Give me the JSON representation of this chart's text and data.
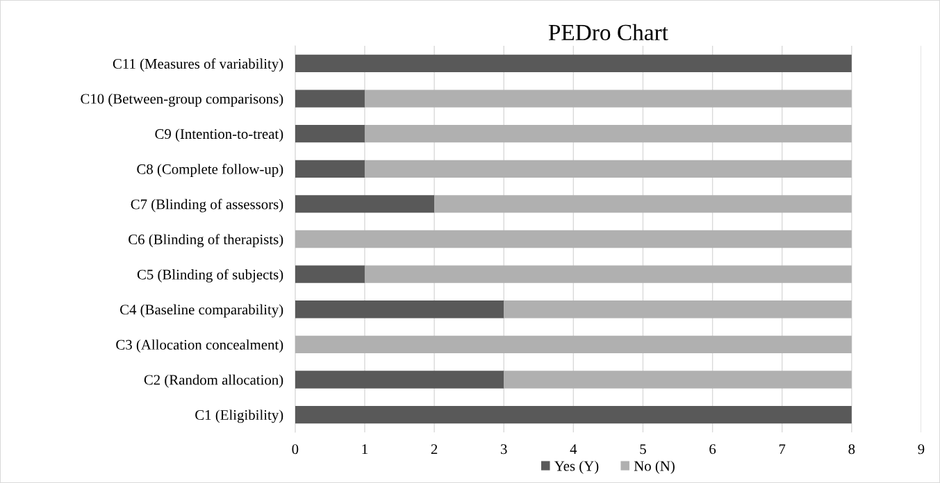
{
  "chart_data": {
    "type": "bar",
    "orientation": "horizontal",
    "stacked": true,
    "title": "PEDro Chart",
    "categories": [
      "C11 (Measures of variability)",
      "C10 (Between-group comparisons)",
      "C9 (Intention-to-treat)",
      "C8 (Complete follow-up)",
      "C7 (Blinding of assessors)",
      "C6 (Blinding of therapists)",
      "C5 (Blinding of subjects)",
      "C4 (Baseline comparability)",
      "C3 (Allocation concealment)",
      "C2 (Random allocation)",
      "C1 (Eligibility)"
    ],
    "series": [
      {
        "name": "Yes (Y)",
        "color": "#595959",
        "values": [
          8,
          1,
          1,
          1,
          2,
          0,
          1,
          3,
          0,
          3,
          8
        ]
      },
      {
        "name": "No (N)",
        "color": "#b0b0b0",
        "values": [
          0,
          7,
          7,
          7,
          6,
          8,
          7,
          5,
          8,
          5,
          0
        ]
      }
    ],
    "xlim": [
      0,
      9
    ],
    "xticks": [
      0,
      1,
      2,
      3,
      4,
      5,
      6,
      7,
      8,
      9
    ],
    "grid": "x",
    "legend": "bottom"
  }
}
